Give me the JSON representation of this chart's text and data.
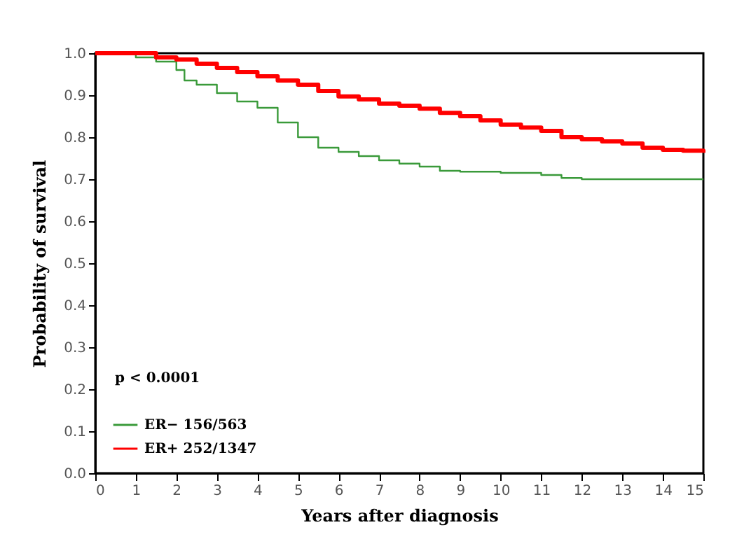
{
  "chart_data": {
    "type": "step",
    "xlabel": "Years after diagnosis",
    "ylabel": "Probability of survival",
    "annotations": [
      "p  < 0.0001"
    ],
    "xlim": [
      0,
      15
    ],
    "xticks": [
      0,
      1,
      2,
      3,
      4,
      5,
      6,
      7,
      8,
      9,
      10,
      11,
      12,
      13,
      14,
      15
    ],
    "ylim": [
      0,
      1.0
    ],
    "yticks": [
      {
        "value": 0,
        "label": "0.0"
      },
      0.1,
      0.2,
      0.3,
      0.4,
      0.5,
      0.6,
      0.7,
      0.8,
      0.9,
      {
        "value": 1,
        "label": "1.0"
      }
    ],
    "legend": "bottom left",
    "grid": false,
    "marker": "none",
    "line_style": "solid",
    "series": [
      {
        "name": "ER−  156/563",
        "color": "#3a9a3a",
        "x": [
          0,
          1,
          1.5,
          2,
          2.2,
          2.5,
          3,
          3.5,
          4,
          4.5,
          5,
          5.5,
          6,
          6.5,
          7,
          7.5,
          8,
          8.5,
          9,
          10,
          11,
          11.5,
          12,
          15
        ],
        "values": [
          1.0,
          0.99,
          0.98,
          0.96,
          0.935,
          0.925,
          0.905,
          0.885,
          0.87,
          0.835,
          0.8,
          0.775,
          0.765,
          0.755,
          0.745,
          0.737,
          0.73,
          0.72,
          0.718,
          0.715,
          0.71,
          0.703,
          0.7,
          0.7
        ]
      },
      {
        "name": "ER+  252/1347",
        "color": "#ff0000",
        "x": [
          0,
          0.8,
          1.5,
          2,
          2.5,
          3,
          3.5,
          4,
          4.5,
          5,
          5.5,
          6,
          6.5,
          7,
          7.5,
          8,
          8.5,
          9,
          9.5,
          10,
          10.5,
          11,
          11.5,
          12,
          12.5,
          13,
          13.5,
          14,
          14.5,
          15
        ],
        "values": [
          1.0,
          1.0,
          0.99,
          0.985,
          0.975,
          0.965,
          0.955,
          0.945,
          0.935,
          0.925,
          0.91,
          0.897,
          0.89,
          0.88,
          0.875,
          0.868,
          0.858,
          0.85,
          0.84,
          0.83,
          0.823,
          0.815,
          0.8,
          0.795,
          0.79,
          0.785,
          0.775,
          0.77,
          0.768,
          0.763
        ]
      }
    ]
  }
}
